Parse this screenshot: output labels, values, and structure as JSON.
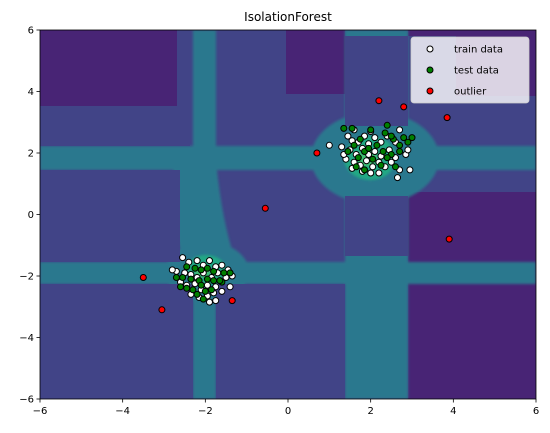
{
  "chart_data": {
    "type": "scatter",
    "title": "IsolationForest",
    "xlim": [
      -6,
      6
    ],
    "ylim": [
      -6,
      6
    ],
    "xticks": [
      -6,
      -4,
      -2,
      0,
      2,
      4,
      6
    ],
    "yticks": [
      -6,
      -4,
      -2,
      0,
      2,
      4,
      6
    ],
    "xlabel": "",
    "ylabel": "",
    "grid": false,
    "legend_position": "top-right",
    "background": {
      "kind": "decision-function-contourf",
      "colors": [
        "#482475",
        "#414487",
        "#2a788e",
        "#22a884",
        "#43bf71"
      ]
    },
    "series": [
      {
        "name": "train data",
        "color": "#ffffff",
        "points": [
          [
            1.45,
            2.55
          ],
          [
            1.55,
            2.4
          ],
          [
            1.7,
            2.35
          ],
          [
            1.85,
            2.55
          ],
          [
            1.95,
            2.3
          ],
          [
            2.1,
            2.5
          ],
          [
            2.25,
            2.35
          ],
          [
            2.4,
            2.55
          ],
          [
            2.6,
            2.35
          ],
          [
            2.7,
            2.75
          ],
          [
            1.3,
            2.2
          ],
          [
            1.5,
            2.1
          ],
          [
            1.65,
            1.95
          ],
          [
            1.8,
            2.15
          ],
          [
            1.95,
            1.95
          ],
          [
            2.1,
            2.05
          ],
          [
            2.25,
            1.9
          ],
          [
            2.45,
            2.1
          ],
          [
            2.6,
            1.85
          ],
          [
            2.85,
            1.95
          ],
          [
            1.4,
            1.8
          ],
          [
            1.6,
            1.7
          ],
          [
            1.75,
            1.6
          ],
          [
            1.9,
            1.75
          ],
          [
            2.05,
            1.55
          ],
          [
            2.2,
            1.7
          ],
          [
            2.35,
            1.55
          ],
          [
            2.5,
            1.7
          ],
          [
            2.7,
            1.45
          ],
          [
            2.95,
            1.45
          ],
          [
            1.55,
            1.5
          ],
          [
            1.8,
            1.4
          ],
          [
            2.0,
            1.35
          ],
          [
            2.2,
            1.35
          ],
          [
            2.65,
            1.2
          ],
          [
            1.0,
            2.25
          ],
          [
            1.6,
            2.75
          ],
          [
            2.9,
            2.1
          ],
          [
            2.0,
            2.7
          ],
          [
            1.35,
            1.95
          ],
          [
            -2.55,
            -1.4
          ],
          [
            -2.4,
            -1.55
          ],
          [
            -2.2,
            -1.5
          ],
          [
            -2.05,
            -1.65
          ],
          [
            -1.9,
            -1.5
          ],
          [
            -1.75,
            -1.7
          ],
          [
            -1.6,
            -1.65
          ],
          [
            -1.45,
            -1.8
          ],
          [
            -2.7,
            -1.85
          ],
          [
            -2.5,
            -1.9
          ],
          [
            -2.35,
            -1.95
          ],
          [
            -2.2,
            -2.05
          ],
          [
            -2.05,
            -1.9
          ],
          [
            -1.85,
            -2.05
          ],
          [
            -1.7,
            -1.9
          ],
          [
            -1.5,
            -2.05
          ],
          [
            -2.6,
            -2.2
          ],
          [
            -2.45,
            -2.3
          ],
          [
            -2.25,
            -2.25
          ],
          [
            -2.1,
            -2.45
          ],
          [
            -1.95,
            -2.3
          ],
          [
            -1.75,
            -2.35
          ],
          [
            -1.6,
            -2.5
          ],
          [
            -1.4,
            -2.35
          ],
          [
            -2.35,
            -2.6
          ],
          [
            -2.15,
            -2.7
          ],
          [
            -1.95,
            -2.65
          ],
          [
            -1.8,
            -2.55
          ],
          [
            -1.9,
            -2.85
          ],
          [
            -1.75,
            -2.8
          ],
          [
            -2.8,
            -1.8
          ],
          [
            -1.35,
            -2.0
          ]
        ]
      },
      {
        "name": "test data",
        "color": "#008000",
        "points": [
          [
            1.35,
            2.8
          ],
          [
            1.55,
            2.8
          ],
          [
            2.0,
            2.75
          ],
          [
            2.35,
            2.65
          ],
          [
            2.55,
            2.45
          ],
          [
            2.8,
            2.5
          ],
          [
            2.9,
            2.35
          ],
          [
            1.75,
            2.45
          ],
          [
            2.15,
            2.25
          ],
          [
            1.6,
            2.25
          ],
          [
            1.85,
            2.05
          ],
          [
            2.3,
            2.05
          ],
          [
            2.7,
            2.05
          ],
          [
            1.45,
            2.05
          ],
          [
            2.5,
            1.95
          ],
          [
            2.05,
            1.8
          ],
          [
            1.95,
            2.15
          ],
          [
            1.7,
            1.85
          ],
          [
            2.4,
            1.85
          ],
          [
            2.25,
            1.6
          ],
          [
            1.65,
            1.55
          ],
          [
            2.6,
            1.55
          ],
          [
            1.85,
            1.45
          ],
          [
            2.5,
            2.55
          ],
          [
            3.0,
            2.5
          ],
          [
            2.7,
            2.25
          ],
          [
            2.4,
            2.9
          ],
          [
            -2.45,
            -1.7
          ],
          [
            -2.25,
            -1.75
          ],
          [
            -2.1,
            -1.8
          ],
          [
            -1.95,
            -1.75
          ],
          [
            -1.8,
            -1.85
          ],
          [
            -2.55,
            -2.05
          ],
          [
            -2.35,
            -2.1
          ],
          [
            -2.15,
            -2.15
          ],
          [
            -1.95,
            -2.1
          ],
          [
            -1.8,
            -2.15
          ],
          [
            -1.6,
            -2.2
          ],
          [
            -2.45,
            -2.4
          ],
          [
            -2.3,
            -2.45
          ],
          [
            -2.1,
            -2.3
          ],
          [
            -2.0,
            -2.5
          ],
          [
            -1.85,
            -2.45
          ],
          [
            -2.2,
            -2.6
          ],
          [
            -2.05,
            -2.75
          ],
          [
            -1.65,
            -2.15
          ],
          [
            -1.55,
            -1.9
          ],
          [
            -2.6,
            -2.35
          ],
          [
            -2.7,
            -2.05
          ],
          [
            -1.4,
            -1.9
          ]
        ]
      },
      {
        "name": "outlier",
        "color": "#ff0000",
        "points": [
          [
            2.2,
            3.7
          ],
          [
            2.8,
            3.5
          ],
          [
            3.85,
            3.15
          ],
          [
            0.7,
            2.0
          ],
          [
            -0.55,
            0.2
          ],
          [
            3.9,
            -0.8
          ],
          [
            -3.5,
            -2.05
          ],
          [
            -1.35,
            -2.8
          ],
          [
            -3.05,
            -3.1
          ]
        ]
      }
    ]
  }
}
